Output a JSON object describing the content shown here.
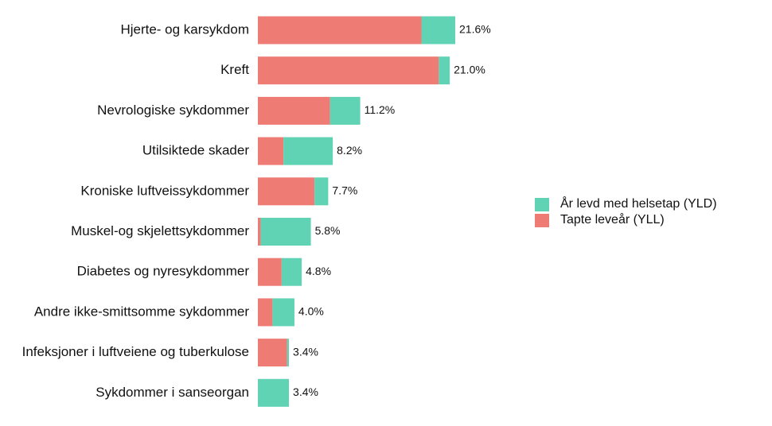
{
  "chart_data": {
    "type": "stacked-bar-horizontal",
    "categories": [
      "Hjerte- og karsykdom",
      "Kreft",
      "Nevrologiske sykdommer",
      "Utilsiktede skader",
      "Kroniske luftveissykdommer",
      "Muskel-og skjelettsykdommer",
      "Diabetes og nyresykdommer",
      "Andre ikke-smittsomme sykdommer",
      "Infeksjoner i luftveiene og tuberkulose",
      "Sykdommer i sanseorgan"
    ],
    "series": [
      {
        "name": "Tapte leveår (YLL)",
        "color": "#ee7b74",
        "values": [
          17.9,
          19.8,
          7.9,
          2.8,
          6.2,
          0.3,
          2.6,
          1.6,
          3.2,
          0
        ]
      },
      {
        "name": "År levd med helsetap (YLD)",
        "color": "#5fd3b3",
        "values": [
          3.7,
          1.2,
          3.3,
          5.4,
          1.5,
          5.5,
          2.2,
          2.4,
          0.2,
          3.4
        ]
      }
    ],
    "totals": [
      21.6,
      21.0,
      11.2,
      8.2,
      7.7,
      5.8,
      4.8,
      4.0,
      3.4,
      3.4
    ],
    "total_labels": [
      "21.6%",
      "21.0%",
      "11.2%",
      "8.2%",
      "7.7%",
      "5.8%",
      "4.8%",
      "4.0%",
      "3.4%",
      "3.4%"
    ],
    "legend": "right"
  }
}
